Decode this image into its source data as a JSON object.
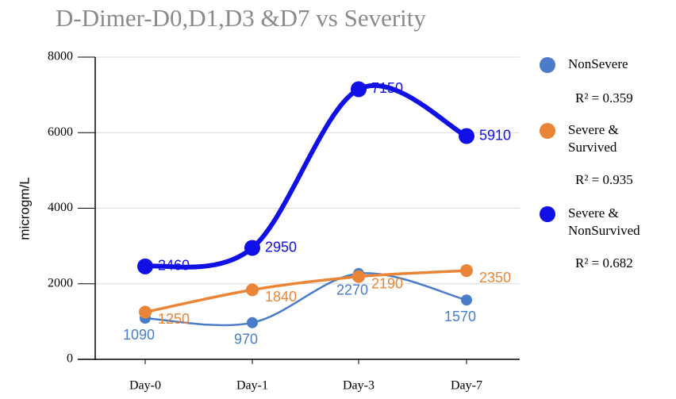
{
  "chart_data": {
    "type": "line",
    "title": "D-Dimer-D0,D1,D3 &D7 vs Severity",
    "y_label": "microgm/L",
    "categories": [
      "Day-0",
      "Day-1",
      "Day-3",
      "Day-7"
    ],
    "series": [
      {
        "name": "NonSevere",
        "color": "#4a7cc9",
        "values": [
          1090,
          970,
          2270,
          1570
        ],
        "annotation": "R² = 0.359"
      },
      {
        "name": "Severe & Survived",
        "color": "#ea8537",
        "values": [
          1250,
          1840,
          2190,
          2350
        ],
        "annotation": "R² = 0.935"
      },
      {
        "name": "Severe & NonSurvived",
        "color": "#1010e6",
        "values": [
          2460,
          2950,
          7150,
          5910
        ],
        "annotation": "R² = 0.682"
      }
    ],
    "ylim": [
      0,
      8000
    ],
    "yticks": [
      0,
      2000,
      4000,
      6000,
      8000
    ],
    "grid": true
  }
}
